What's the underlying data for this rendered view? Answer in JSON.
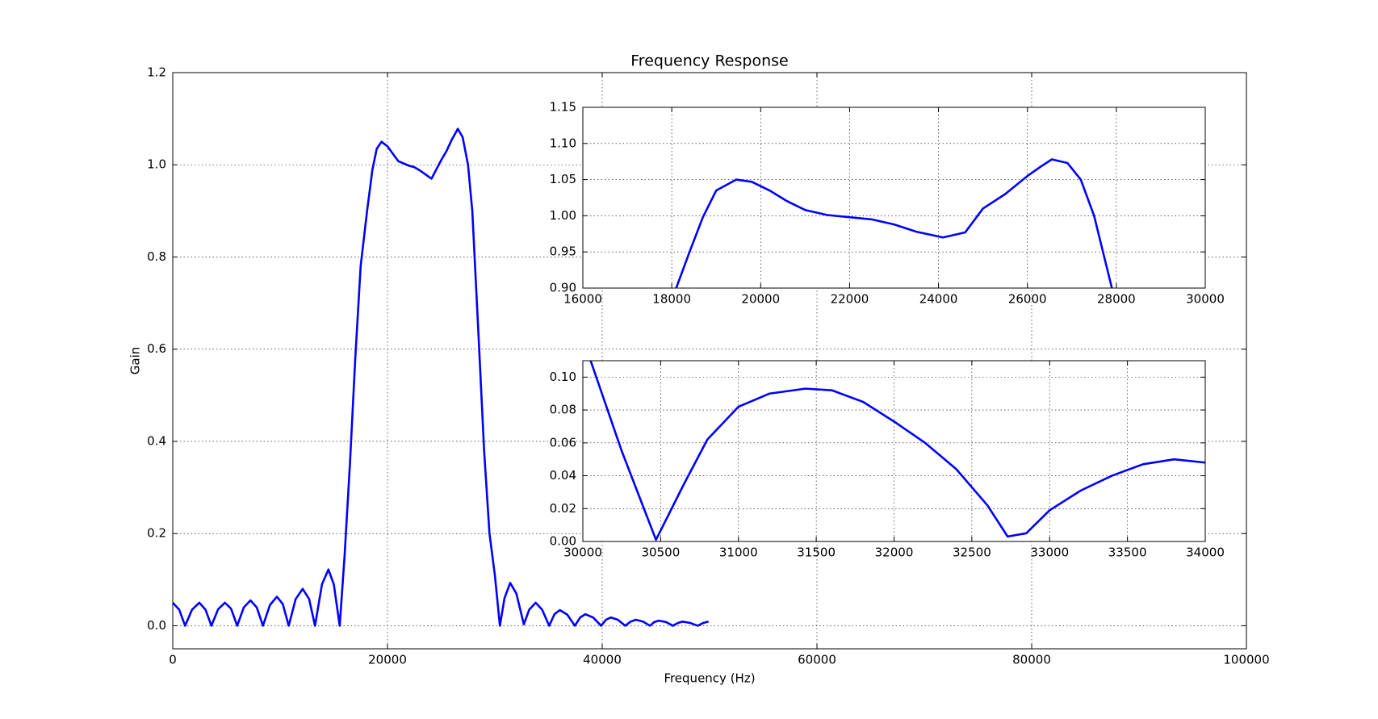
{
  "chart_data": [
    {
      "type": "line",
      "title": "Frequency Response",
      "x_label": "Frequency (Hz)",
      "y_label": "Gain",
      "x": [
        0,
        600,
        1150,
        1800,
        2470,
        3050,
        3600,
        4230,
        4860,
        5430,
        6000,
        6620,
        7240,
        7820,
        8400,
        9050,
        9700,
        10250,
        10800,
        11450,
        12100,
        12700,
        13250,
        13900,
        14500,
        15000,
        15550,
        16000,
        16500,
        17000,
        17500,
        18100,
        18600,
        19000,
        19450,
        20000,
        21000,
        22000,
        22500,
        23000,
        24100,
        25000,
        25500,
        26000,
        26550,
        27000,
        27500,
        27900,
        28500,
        29000,
        29500,
        30000,
        30470,
        30900,
        31430,
        32000,
        32700,
        33200,
        33800,
        34400,
        35060,
        35550,
        36050,
        36750,
        37450,
        37950,
        38430,
        39150,
        39900,
        40350,
        40800,
        41450,
        42140,
        42650,
        43130,
        43800,
        44440,
        44850,
        45270,
        45950,
        46580,
        47050,
        47490,
        48200,
        48900,
        49400,
        49900
      ],
      "values": [
        0.05,
        0.035,
        0,
        0.035,
        0.05,
        0.035,
        0,
        0.036,
        0.05,
        0.037,
        0,
        0.04,
        0.055,
        0.04,
        0,
        0.045,
        0.063,
        0.047,
        0,
        0.058,
        0.08,
        0.058,
        0,
        0.09,
        0.122,
        0.09,
        0,
        0.15,
        0.35,
        0.58,
        0.78,
        0.9,
        0.99,
        1.035,
        1.05,
        1.04,
        1.008,
        0.998,
        0.995,
        0.988,
        0.97,
        1.01,
        1.03,
        1.055,
        1.078,
        1.06,
        1.0,
        0.9,
        0.62,
        0.38,
        0.2,
        0.11,
        0,
        0.06,
        0.093,
        0.07,
        0.003,
        0.035,
        0.05,
        0.035,
        0,
        0.025,
        0.034,
        0.024,
        0,
        0.018,
        0.025,
        0.018,
        0,
        0.013,
        0.018,
        0.013,
        0,
        0.009,
        0.013,
        0.009,
        0,
        0.008,
        0.011,
        0.008,
        0,
        0.006,
        0.009,
        0.006,
        0,
        0.006,
        0.009
      ],
      "color": "#0000ff",
      "xlim": [
        0,
        100000
      ],
      "xticks": [
        0,
        20000,
        40000,
        60000,
        80000,
        100000
      ],
      "ylim": [
        -0.05,
        1.2
      ],
      "yticks": [
        {
          "value": 0,
          "label": "0.0"
        },
        0.2,
        0.4,
        0.6,
        0.8,
        {
          "value": 1,
          "label": "1.0"
        },
        1.2
      ],
      "grid": true
    },
    {
      "type": "line",
      "x": [
        17800,
        18100,
        18400,
        18700,
        19000,
        19450,
        19800,
        20200,
        20600,
        21000,
        21500,
        22000,
        22500,
        23000,
        23500,
        24100,
        24600,
        25000,
        25500,
        26000,
        26300,
        26550,
        26900,
        27200,
        27500,
        27900,
        28100
      ],
      "values": [
        0.85,
        0.9,
        0.95,
        0.998,
        1.035,
        1.05,
        1.047,
        1.035,
        1.02,
        1.008,
        1.001,
        0.998,
        0.995,
        0.988,
        0.978,
        0.97,
        0.977,
        1.01,
        1.03,
        1.055,
        1.068,
        1.078,
        1.073,
        1.05,
        1.0,
        0.9,
        0.82
      ],
      "color": "#0000ff",
      "xlim": [
        16000,
        30000
      ],
      "xticks": [
        16000,
        18000,
        20000,
        22000,
        24000,
        26000,
        28000,
        30000
      ],
      "ylim": [
        0.9,
        1.15
      ],
      "yticks": [
        {
          "value": 0.9,
          "label": "0.90"
        },
        {
          "value": 0.95,
          "label": "0.95"
        },
        {
          "value": 1,
          "label": "1.00"
        },
        {
          "value": 1.05,
          "label": "1.05"
        },
        {
          "value": 1.1,
          "label": "1.10"
        },
        {
          "value": 1.15,
          "label": "1.15"
        }
      ],
      "grid": true
    },
    {
      "type": "line",
      "x": [
        30050,
        30250,
        30470,
        30650,
        30800,
        31000,
        31200,
        31430,
        31600,
        31800,
        32000,
        32200,
        32400,
        32600,
        32730,
        32850,
        33000,
        33200,
        33400,
        33600,
        33800,
        34000
      ],
      "values": [
        0.11,
        0.055,
        0.001,
        0.035,
        0.062,
        0.082,
        0.09,
        0.093,
        0.092,
        0.085,
        0.073,
        0.06,
        0.044,
        0.022,
        0.003,
        0.005,
        0.019,
        0.031,
        0.04,
        0.047,
        0.05,
        0.048
      ],
      "color": "#0000ff",
      "xlim": [
        30000,
        34000
      ],
      "xticks": [
        30000,
        30500,
        31000,
        31500,
        32000,
        32500,
        33000,
        33500,
        34000
      ],
      "ylim": [
        0,
        0.11
      ],
      "yticks": [
        {
          "value": 0,
          "label": "0.00"
        },
        {
          "value": 0.02,
          "label": "0.02"
        },
        {
          "value": 0.04,
          "label": "0.04"
        },
        {
          "value": 0.06,
          "label": "0.06"
        },
        {
          "value": 0.08,
          "label": "0.08"
        },
        {
          "value": 0.1,
          "label": "0.10"
        }
      ],
      "grid": true
    }
  ]
}
